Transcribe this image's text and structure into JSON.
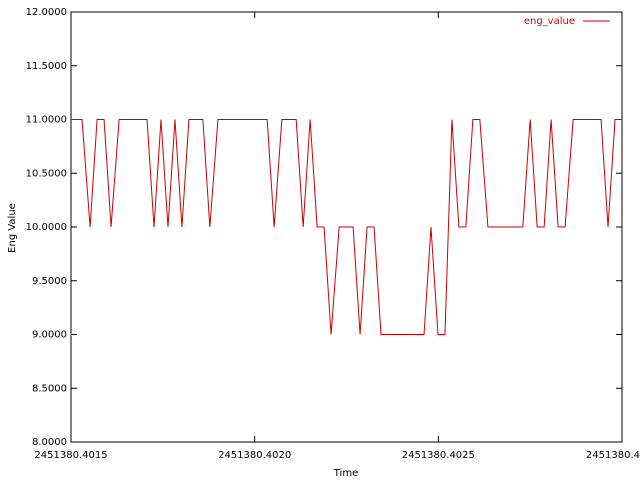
{
  "chart_data": {
    "type": "line",
    "xlabel": "Time",
    "ylabel": "Eng Value",
    "x": [
      2451380.4015,
      2451380.40153,
      2451380.401552,
      2451380.401571,
      2451380.40159,
      2451380.401609,
      2451380.401631,
      2451380.401707,
      2451380.401726,
      2451380.401745,
      2451380.401764,
      2451380.401783,
      2451380.401802,
      2451380.401821,
      2451380.401859,
      2451380.401878,
      2451380.4019,
      2451380.402034,
      2451380.402053,
      2451380.402074,
      2451380.402113,
      2451380.402132,
      2451380.402151,
      2451380.40217,
      2451380.402189,
      2451380.402208,
      2451380.40223,
      2451380.402268,
      2451380.402287,
      2451380.402306,
      2451380.402325,
      2451380.402344,
      2451380.402461,
      2451380.40248,
      2451380.402499,
      2451380.402518,
      2451380.402537,
      2451380.402556,
      2451380.402575,
      2451380.402594,
      2451380.402613,
      2451380.402635,
      2451380.40273,
      2451380.40275,
      2451380.402769,
      2451380.402788,
      2451380.402807,
      2451380.402826,
      2451380.402845,
      2451380.402867,
      2451380.402943,
      2451380.402962,
      2451380.402981,
      2451380.403
    ],
    "series": [
      {
        "name": "eng_value",
        "color": "#cc0000",
        "values": [
          11,
          11,
          10,
          11,
          11,
          10,
          11,
          11,
          10,
          11,
          10,
          11,
          10,
          11,
          11,
          10,
          11,
          11,
          10,
          11,
          11,
          10,
          11,
          10,
          10,
          9,
          10,
          10,
          9,
          10,
          10,
          9,
          9,
          10,
          9,
          9,
          11,
          10,
          10,
          11,
          11,
          10,
          10,
          11,
          10,
          10,
          11,
          10,
          10,
          11,
          11,
          10,
          11,
          11
        ]
      }
    ],
    "xlim": [
      2451380.4015,
      2451380.403
    ],
    "xticks": [
      {
        "value": 2451380.4015,
        "label": "2451380.4015"
      },
      {
        "value": 2451380.402,
        "label": "2451380.4020"
      },
      {
        "value": 2451380.4025,
        "label": "2451380.4025"
      },
      {
        "value": 2451380.403,
        "label": "2451380.4"
      }
    ],
    "ylim": [
      8,
      12
    ],
    "yticks": [
      {
        "value": 8,
        "label": "8.0000"
      },
      {
        "value": 8.5,
        "label": "8.5000"
      },
      {
        "value": 9,
        "label": "9.0000"
      },
      {
        "value": 9.5,
        "label": "9.5000"
      },
      {
        "value": 10,
        "label": "10.0000"
      },
      {
        "value": 10.5,
        "label": "10.5000"
      },
      {
        "value": 11,
        "label": "11.0000"
      },
      {
        "value": 11.5,
        "label": "11.5000"
      },
      {
        "value": 12,
        "label": "12.0000"
      }
    ],
    "grid": false,
    "legend": "top-right"
  }
}
